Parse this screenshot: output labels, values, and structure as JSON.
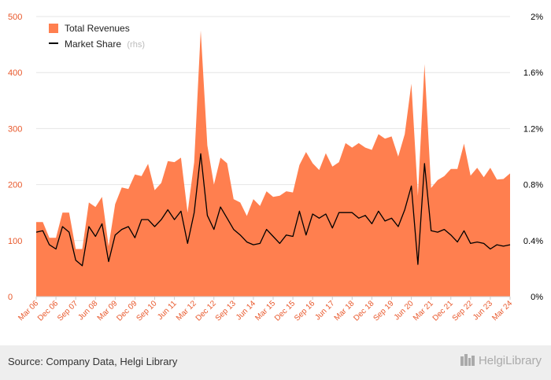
{
  "chart_data": {
    "type": "area",
    "title": "",
    "xlabel": "",
    "ylabel": "",
    "ylim": [
      0,
      500
    ],
    "y2lim": [
      0,
      2
    ],
    "y_ticks": [
      "0",
      "100",
      "200",
      "300",
      "400",
      "500"
    ],
    "y2_ticks": [
      "0%",
      "0.4%",
      "0.8%",
      "1.2%",
      "1.6%",
      "2%"
    ],
    "x_tick_labels": [
      "Mar 06",
      "Dec 06",
      "Sep 07",
      "Jun 08",
      "Mar 09",
      "Dec 09",
      "Sep 10",
      "Jun 11",
      "Mar 12",
      "Dec 12",
      "Sep 13",
      "Jun 14",
      "Mar 15",
      "Dec 15",
      "Sep 16",
      "Jun 17",
      "Mar 18",
      "Dec 18",
      "Sep 19",
      "Jun 20",
      "Mar 21",
      "Dec 21",
      "Sep 22",
      "Jun 23",
      "Mar 24"
    ],
    "legend": {
      "placement": "top-left"
    },
    "series": [
      {
        "name": "Total Revenues",
        "axis": "left",
        "color": "#ff7f4f",
        "values": [
          133,
          133,
          105,
          105,
          150,
          150,
          85,
          85,
          168,
          160,
          178,
          90,
          165,
          195,
          192,
          218,
          215,
          237,
          190,
          203,
          242,
          240,
          248,
          150,
          240,
          475,
          270,
          200,
          248,
          238,
          174,
          168,
          144,
          174,
          162,
          188,
          178,
          180,
          188,
          186,
          235,
          258,
          238,
          226,
          256,
          232,
          240,
          274,
          266,
          274,
          266,
          262,
          290,
          282,
          286,
          250,
          290,
          380,
          180,
          415,
          194,
          208,
          215,
          228,
          228,
          273,
          216,
          230,
          213,
          230,
          209,
          210,
          220
        ]
      },
      {
        "name": "Market Share",
        "suffix": "(rhs)",
        "axis": "right",
        "color": "#000000",
        "values": [
          0.46,
          0.47,
          0.37,
          0.34,
          0.5,
          0.46,
          0.26,
          0.22,
          0.5,
          0.43,
          0.52,
          0.25,
          0.44,
          0.48,
          0.5,
          0.42,
          0.55,
          0.55,
          0.5,
          0.55,
          0.62,
          0.55,
          0.61,
          0.38,
          0.6,
          1.02,
          0.58,
          0.48,
          0.64,
          0.56,
          0.48,
          0.44,
          0.39,
          0.37,
          0.38,
          0.48,
          0.43,
          0.38,
          0.44,
          0.43,
          0.61,
          0.44,
          0.59,
          0.56,
          0.59,
          0.49,
          0.6,
          0.6,
          0.6,
          0.56,
          0.58,
          0.52,
          0.61,
          0.54,
          0.56,
          0.5,
          0.62,
          0.79,
          0.23,
          0.95,
          0.47,
          0.46,
          0.48,
          0.44,
          0.39,
          0.47,
          0.38,
          0.39,
          0.38,
          0.34,
          0.37,
          0.36,
          0.37
        ]
      }
    ]
  },
  "footer": {
    "source": "Source: Company Data, Helgi Library",
    "brand": "HelgiLibrary"
  }
}
